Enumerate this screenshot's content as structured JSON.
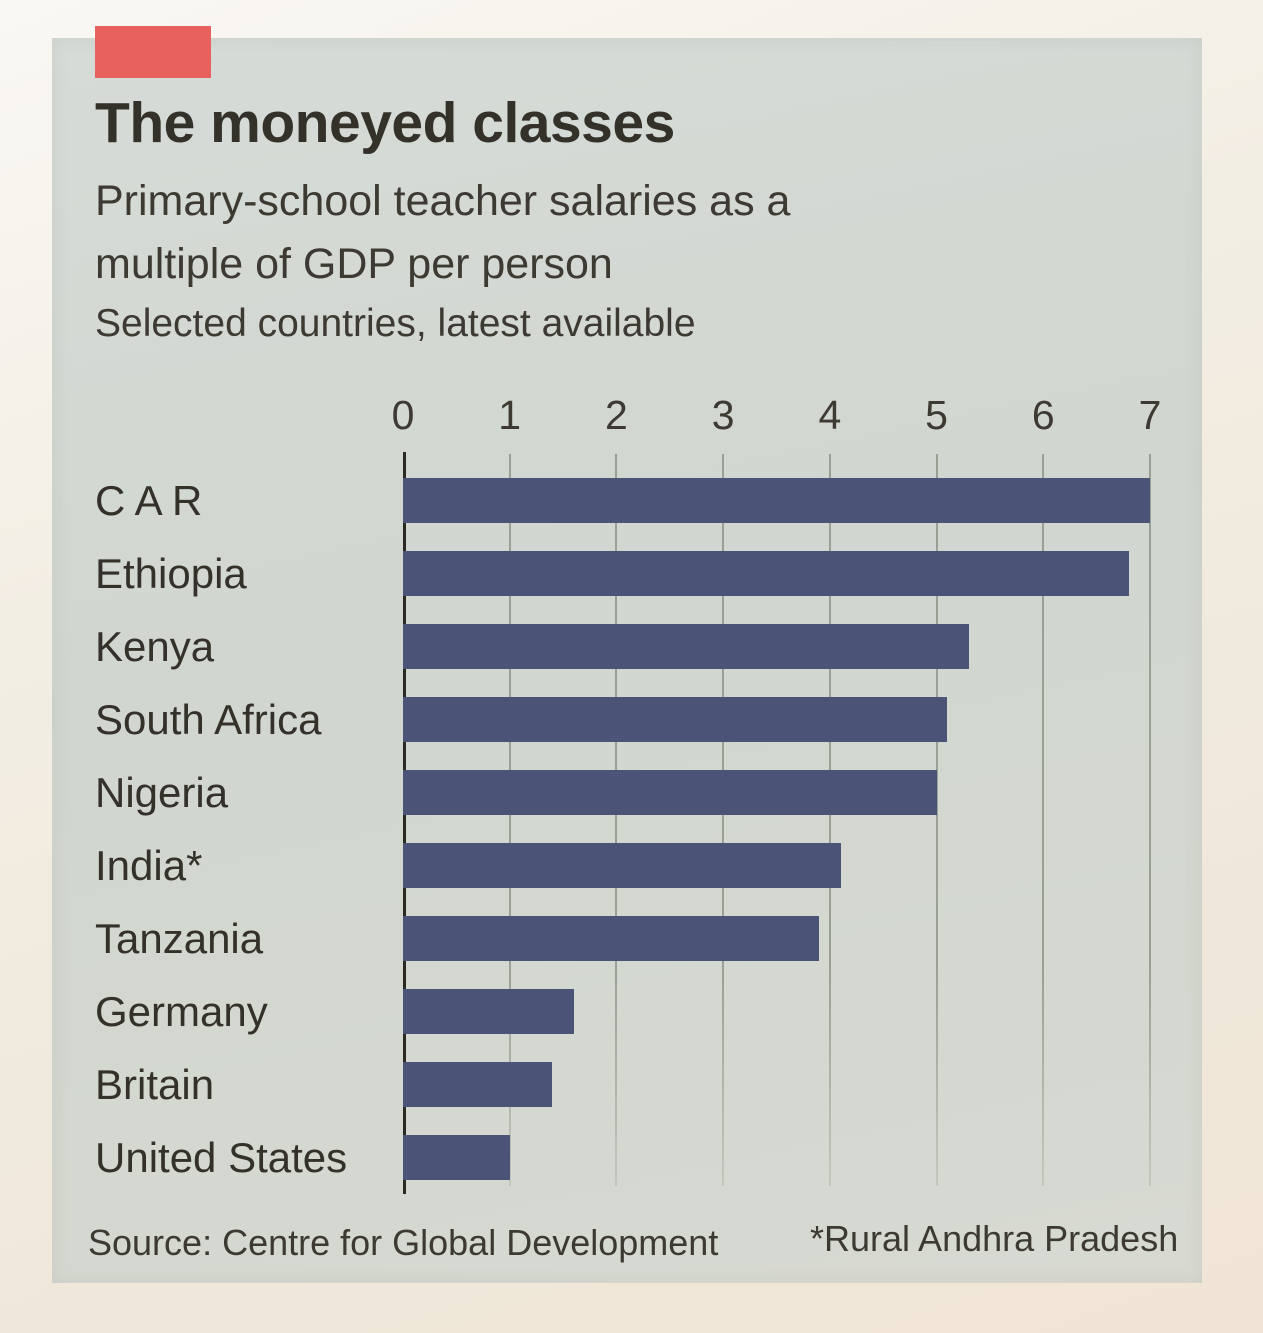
{
  "panel": {
    "title": "The moneyed classes",
    "subtitle_line1": "Primary-school teacher salaries as a",
    "subtitle_line2": "multiple of GDP per person",
    "note": "Selected countries, latest available",
    "source": "Source: Centre for Global Development",
    "footnote": "*Rural Andhra Pradesh"
  },
  "colors": {
    "bar": "#4b5377",
    "accent_red": "#e8615f",
    "panel_bg": "#d2d7d1",
    "paper_bg": "#f1ebdf",
    "text": "#33312a",
    "text_soft": "#3c3a32",
    "gridline": "#9aa096",
    "axis_line": "#2a2922"
  },
  "chart_data": {
    "type": "bar",
    "orientation": "horizontal",
    "title": "The moneyed classes",
    "subtitle": "Primary-school teacher salaries as a multiple of GDP per person",
    "note": "Selected countries, latest available",
    "categories": [
      "C A R",
      "Ethiopia",
      "Kenya",
      "South Africa",
      "Nigeria",
      "India*",
      "Tanzania",
      "Germany",
      "Britain",
      "United States"
    ],
    "values": [
      7.0,
      6.8,
      5.3,
      5.1,
      5.0,
      4.1,
      3.9,
      1.6,
      1.4,
      1.0
    ],
    "x_ticks": [
      0,
      1,
      2,
      3,
      4,
      5,
      6,
      7
    ],
    "xlim": [
      0,
      7
    ],
    "xlabel": "",
    "ylabel": "",
    "grid": true,
    "legend": false
  }
}
